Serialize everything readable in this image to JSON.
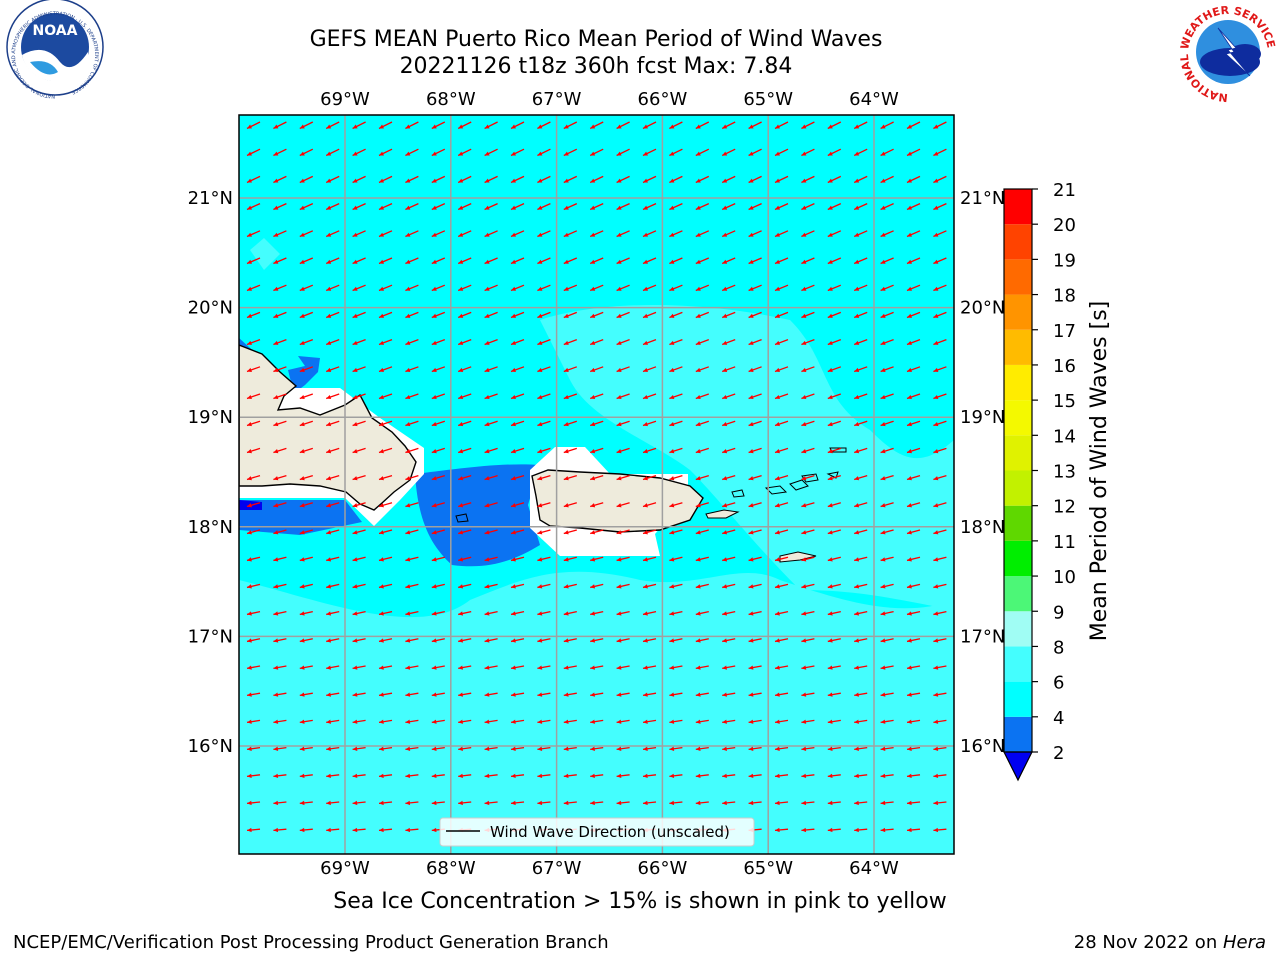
{
  "title_line1": "GEFS MEAN Puerto Rico Mean Period of Wind Waves",
  "title_line2": "20221126 t18z 360h fcst   Max: 7.84",
  "subtitle": "Sea Ice Concentration > 15% is shown in pink to yellow",
  "footer_left": "NCEP/EMC/Verification Post Processing Product Generation Branch",
  "footer_right_date": "28 Nov 2022 on ",
  "footer_right_host": "Hera",
  "logos": {
    "noaa": {
      "text": "NOAA",
      "ring_text": "NATIONAL OCEANIC AND ATMOSPHERIC ADMINISTRATION · U.S. DEPARTMENT OF COMMERCE"
    },
    "nws": {
      "ring_text": "NATIONAL WEATHER SERVICE"
    }
  },
  "legend_label": "Wind Wave Direction (unscaled)",
  "map": {
    "lon_ticks": [
      {
        "value": -69,
        "label": "69°W"
      },
      {
        "value": -68,
        "label": "68°W"
      },
      {
        "value": -67,
        "label": "67°W"
      },
      {
        "value": -66,
        "label": "66°W"
      },
      {
        "value": -65,
        "label": "65°W"
      },
      {
        "value": -64,
        "label": "64°W"
      }
    ],
    "lat_ticks": [
      {
        "value": 21,
        "label": "21°N"
      },
      {
        "value": 20,
        "label": "20°N"
      },
      {
        "value": 19,
        "label": "19°N"
      },
      {
        "value": 18,
        "label": "18°N"
      },
      {
        "value": 17,
        "label": "17°N"
      },
      {
        "value": 16,
        "label": "16°N"
      }
    ],
    "arrow_color": "#ff0000",
    "land_color": "#eeebdc"
  },
  "colorbar": {
    "label": "Mean Period of Wind Waves [s]",
    "ticks": [
      "21",
      "20",
      "19",
      "18",
      "17",
      "16",
      "15",
      "14",
      "13",
      "12",
      "11",
      "10",
      "9",
      "8",
      "6",
      "4",
      "2"
    ],
    "levels": [
      {
        "from": "2",
        "to": "4",
        "color": "#0b73f2"
      },
      {
        "from": "4",
        "to": "6",
        "color": "#00ffff"
      },
      {
        "from": "6",
        "to": "8",
        "color": "#44fefe"
      },
      {
        "from": "8",
        "to": "9",
        "color": "#a0fdf4"
      },
      {
        "from": "9",
        "to": "10",
        "color": "#4cf777"
      },
      {
        "from": "10",
        "to": "11",
        "color": "#00ee00"
      },
      {
        "from": "11",
        "to": "12",
        "color": "#5fd800"
      },
      {
        "from": "12",
        "to": "13",
        "color": "#c2f100"
      },
      {
        "from": "13",
        "to": "14",
        "color": "#e0f200"
      },
      {
        "from": "14",
        "to": "15",
        "color": "#f4f900"
      },
      {
        "from": "15",
        "to": "16",
        "color": "#ffec00"
      },
      {
        "from": "16",
        "to": "17",
        "color": "#ffbb00"
      },
      {
        "from": "17",
        "to": "18",
        "color": "#ff9400"
      },
      {
        "from": "18",
        "to": "19",
        "color": "#ff6a00"
      },
      {
        "from": "19",
        "to": "20",
        "color": "#ff4300"
      },
      {
        "from": "20",
        "to": "21",
        "color": "#ff0000"
      }
    ],
    "under_color": "#0000f0"
  }
}
